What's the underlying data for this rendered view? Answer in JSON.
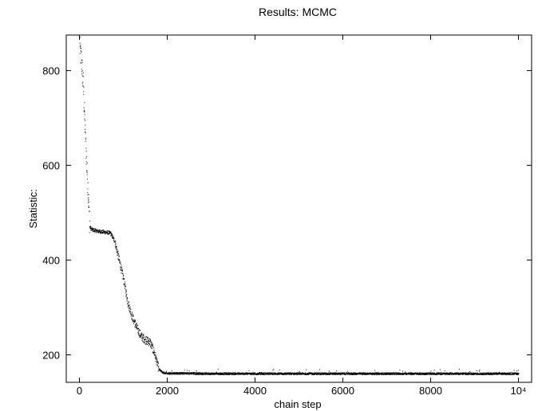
{
  "chart_data": {
    "type": "scatter",
    "title": "Results: MCMC",
    "xlabel": "chain step",
    "ylabel": "Statistic:",
    "xlim": [
      -300,
      10300
    ],
    "ylim": [
      142,
      875
    ],
    "x_ticks": [
      0,
      2000,
      4000,
      6000,
      8000,
      10000
    ],
    "x_tick_labels": [
      "0",
      "2000",
      "4000",
      "6000",
      "8000",
      "10⁴"
    ],
    "y_ticks": [
      200,
      400,
      600,
      800
    ],
    "y_tick_labels": [
      "200",
      "400",
      "600",
      "800"
    ],
    "grid": false,
    "legend": "none",
    "marker_color": "#000000",
    "series": [
      {
        "trace_keypoints": [
          [
            0,
            850
          ],
          [
            40,
            820
          ],
          [
            80,
            770
          ],
          [
            120,
            680
          ],
          [
            160,
            600
          ],
          [
            200,
            530
          ],
          [
            230,
            470
          ],
          [
            280,
            465
          ],
          [
            400,
            462
          ],
          [
            550,
            460
          ],
          [
            700,
            458
          ],
          [
            800,
            440
          ],
          [
            900,
            400
          ],
          [
            1000,
            360
          ],
          [
            1100,
            310
          ],
          [
            1200,
            280
          ],
          [
            1300,
            258
          ],
          [
            1400,
            240
          ],
          [
            1500,
            232
          ],
          [
            1600,
            228
          ],
          [
            1700,
            205
          ],
          [
            1800,
            170
          ],
          [
            1900,
            163
          ],
          [
            2000,
            162
          ],
          [
            3000,
            161
          ],
          [
            4000,
            161
          ],
          [
            5000,
            161
          ],
          [
            6000,
            161
          ],
          [
            7000,
            161
          ],
          [
            8000,
            161
          ],
          [
            9000,
            161
          ],
          [
            10000,
            161
          ]
        ]
      }
    ]
  }
}
